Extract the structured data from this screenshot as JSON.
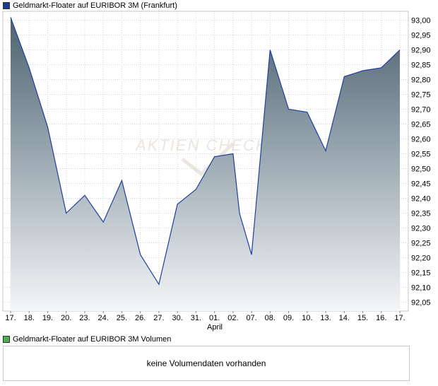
{
  "price_legend": {
    "label": "Geldmarkt-Floater auf EURIBOR 3M (Frankfurt)",
    "color": "#1f3a93"
  },
  "volume_legend": {
    "label": "Geldmarkt-Floater auf EURIBOR 3M Volumen",
    "color": "#4caf50"
  },
  "volume_message": "keine Volumendaten vorhanden",
  "watermark": "AKTIEN CHECK",
  "chart_data": {
    "type": "area",
    "title": "",
    "xlabel": "",
    "ylabel": "",
    "ylim": [
      92.02,
      93.03
    ],
    "yticks": [
      "93,00",
      "92,95",
      "92,90",
      "92,85",
      "92,80",
      "92,75",
      "92,70",
      "92,65",
      "92,60",
      "92,55",
      "92,50",
      "92,45",
      "92,40",
      "92,35",
      "92,30",
      "92,25",
      "92,20",
      "92,15",
      "92,10",
      "92,05"
    ],
    "xticks": [
      "17.",
      "18.",
      "19.",
      "20.",
      "23.",
      "24.",
      "25.",
      "26.",
      "27.",
      "30.",
      "31.",
      "01.",
      "02.",
      "07.",
      "08.",
      "09.",
      "10.",
      "13.",
      "14.",
      "15.",
      "16.",
      "17."
    ],
    "month_label": "April",
    "grid": true,
    "series": [
      {
        "name": "Geldmarkt-Floater auf EURIBOR 3M (Frankfurt)",
        "points": [
          {
            "x": 0.0,
            "y": 93.01
          },
          {
            "x": 1.0,
            "y": 92.84
          },
          {
            "x": 2.0,
            "y": 92.64
          },
          {
            "x": 3.0,
            "y": 92.35
          },
          {
            "x": 4.0,
            "y": 92.41
          },
          {
            "x": 5.0,
            "y": 92.32
          },
          {
            "x": 6.0,
            "y": 92.46
          },
          {
            "x": 7.0,
            "y": 92.21
          },
          {
            "x": 8.0,
            "y": 92.11
          },
          {
            "x": 9.0,
            "y": 92.38
          },
          {
            "x": 10.0,
            "y": 92.43
          },
          {
            "x": 11.0,
            "y": 92.54
          },
          {
            "x": 12.0,
            "y": 92.55
          },
          {
            "x": 12.35,
            "y": 92.35
          },
          {
            "x": 13.0,
            "y": 92.21
          },
          {
            "x": 14.0,
            "y": 92.9
          },
          {
            "x": 15.0,
            "y": 92.7
          },
          {
            "x": 16.0,
            "y": 92.69
          },
          {
            "x": 17.0,
            "y": 92.56
          },
          {
            "x": 18.0,
            "y": 92.81
          },
          {
            "x": 19.0,
            "y": 92.83
          },
          {
            "x": 20.0,
            "y": 92.84
          },
          {
            "x": 21.0,
            "y": 92.9
          }
        ]
      }
    ]
  }
}
